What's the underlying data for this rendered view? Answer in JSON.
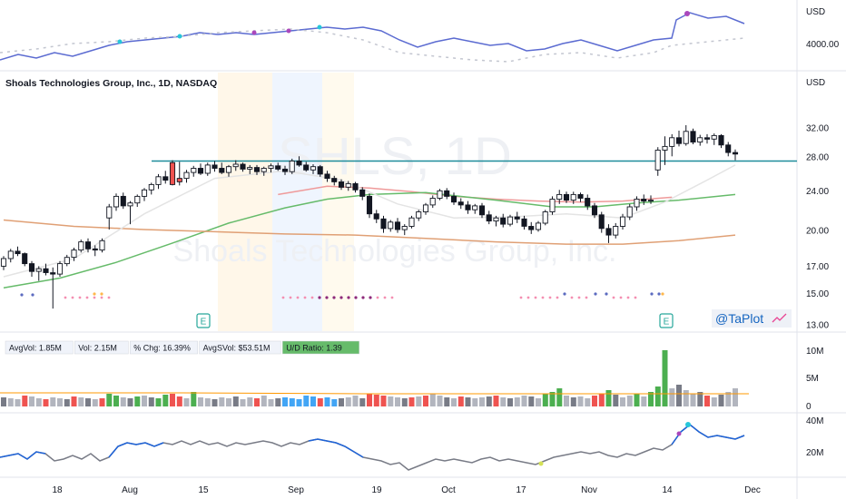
{
  "chart_data": {
    "type": "candlestick",
    "title": "Shoals Technologies Group, Inc., 1D, NASDAQ",
    "watermark": {
      "ticker": "SHLS, 1D",
      "name": "Shoals Technologies Group, Inc."
    },
    "price_axis": {
      "unit": "USD",
      "scale": "log",
      "ticks": [
        "32.00",
        "28.00",
        "24.00",
        "20.00",
        "17.00",
        "15.00",
        "13.00"
      ],
      "tick_values": [
        32,
        28,
        24,
        20,
        17,
        15,
        13
      ]
    },
    "x_axis": {
      "labels": [
        "18",
        "Aug",
        "15",
        "Sep",
        "19",
        "Oct",
        "17",
        "Nov",
        "14",
        "Dec"
      ]
    },
    "earnings_markers": [
      "E",
      "E"
    ],
    "horizontal_line": 27.5,
    "candles": [
      [
        17.0,
        17.8,
        16.7,
        17.6
      ],
      [
        17.6,
        18.4,
        17.3,
        18.2
      ],
      [
        18.2,
        18.6,
        17.8,
        18.0
      ],
      [
        18.0,
        18.1,
        17.0,
        17.2
      ],
      [
        17.2,
        17.4,
        16.2,
        16.6
      ],
      [
        16.6,
        17.0,
        15.9,
        16.8
      ],
      [
        16.8,
        17.2,
        16.3,
        16.5
      ],
      [
        16.5,
        16.9,
        14.0,
        16.4
      ],
      [
        16.4,
        17.4,
        16.2,
        17.2
      ],
      [
        17.2,
        17.9,
        17.0,
        17.7
      ],
      [
        17.7,
        18.5,
        17.4,
        18.3
      ],
      [
        18.3,
        19.2,
        18.1,
        19.0
      ],
      [
        19.0,
        19.3,
        18.1,
        18.4
      ],
      [
        18.4,
        18.7,
        17.8,
        18.3
      ],
      [
        18.3,
        19.3,
        18.1,
        19.1
      ],
      [
        21.2,
        22.6,
        20.1,
        22.3
      ],
      [
        22.3,
        23.7,
        21.9,
        23.4
      ],
      [
        23.4,
        23.8,
        22.1,
        22.4
      ],
      [
        22.4,
        22.9,
        20.6,
        22.7
      ],
      [
        22.7,
        23.6,
        22.3,
        23.4
      ],
      [
        23.4,
        24.3,
        22.9,
        24.1
      ],
      [
        24.1,
        24.9,
        23.6,
        24.7
      ],
      [
        24.7,
        25.9,
        24.2,
        25.6
      ],
      [
        25.6,
        26.3,
        24.8,
        25.2
      ],
      [
        24.7,
        27.6,
        24.6,
        27.3
      ],
      [
        25.0,
        27.4,
        24.6,
        25.4
      ],
      [
        25.4,
        26.4,
        24.9,
        26.1
      ],
      [
        26.1,
        26.9,
        25.6,
        26.6
      ],
      [
        26.6,
        27.2,
        25.8,
        26.0
      ],
      [
        26.0,
        27.3,
        25.7,
        27.0
      ],
      [
        27.0,
        27.5,
        26.2,
        26.6
      ],
      [
        26.6,
        27.3,
        25.9,
        26.1
      ],
      [
        26.1,
        27.0,
        25.6,
        26.8
      ],
      [
        26.8,
        27.6,
        26.3,
        27.1
      ],
      [
        27.1,
        27.3,
        26.2,
        26.5
      ],
      [
        26.5,
        27.0,
        25.9,
        26.7
      ],
      [
        26.7,
        27.0,
        25.8,
        26.2
      ],
      [
        26.2,
        26.8,
        25.7,
        26.6
      ],
      [
        26.6,
        27.2,
        26.1,
        26.9
      ],
      [
        26.9,
        27.3,
        26.3,
        26.5
      ],
      [
        26.5,
        26.9,
        25.8,
        26.2
      ],
      [
        26.2,
        27.8,
        25.9,
        27.5
      ],
      [
        27.5,
        28.1,
        26.8,
        27.0
      ],
      [
        27.0,
        27.4,
        26.2,
        26.4
      ],
      [
        26.4,
        27.1,
        25.9,
        26.8
      ],
      [
        26.8,
        27.0,
        25.6,
        25.9
      ],
      [
        25.9,
        26.3,
        25.0,
        25.4
      ],
      [
        25.4,
        25.7,
        24.6,
        25.0
      ],
      [
        25.0,
        25.3,
        24.1,
        24.4
      ],
      [
        24.4,
        25.1,
        24.0,
        24.8
      ],
      [
        24.8,
        25.0,
        23.8,
        24.1
      ],
      [
        24.1,
        24.4,
        23.0,
        23.4
      ],
      [
        23.4,
        23.7,
        21.2,
        21.6
      ],
      [
        21.6,
        22.0,
        20.7,
        21.1
      ],
      [
        21.1,
        21.4,
        19.8,
        20.2
      ],
      [
        20.2,
        21.0,
        19.9,
        20.8
      ],
      [
        20.8,
        21.2,
        19.8,
        20.1
      ],
      [
        20.1,
        20.6,
        19.6,
        20.4
      ],
      [
        20.4,
        21.4,
        20.2,
        21.2
      ],
      [
        21.2,
        22.0,
        20.9,
        21.8
      ],
      [
        21.8,
        22.7,
        21.5,
        22.5
      ],
      [
        22.5,
        23.5,
        22.2,
        23.2
      ],
      [
        23.2,
        24.2,
        23.0,
        24.0
      ],
      [
        24.0,
        24.3,
        23.1,
        23.4
      ],
      [
        23.4,
        23.8,
        22.5,
        22.8
      ],
      [
        22.8,
        23.2,
        22.1,
        22.5
      ],
      [
        22.5,
        22.9,
        21.6,
        22.0
      ],
      [
        22.0,
        22.6,
        21.6,
        22.4
      ],
      [
        22.4,
        22.7,
        21.2,
        21.5
      ],
      [
        21.5,
        21.9,
        20.6,
        20.9
      ],
      [
        20.9,
        21.4,
        20.4,
        21.2
      ],
      [
        21.2,
        21.6,
        20.3,
        20.6
      ],
      [
        20.6,
        21.5,
        20.4,
        21.3
      ],
      [
        21.3,
        21.8,
        20.7,
        21.1
      ],
      [
        21.1,
        21.4,
        20.1,
        20.4
      ],
      [
        20.4,
        20.8,
        19.7,
        20.1
      ],
      [
        20.1,
        20.9,
        19.9,
        20.7
      ],
      [
        20.7,
        22.0,
        20.5,
        21.8
      ],
      [
        21.8,
        23.4,
        21.5,
        23.1
      ],
      [
        23.1,
        24.1,
        22.6,
        23.6
      ],
      [
        23.6,
        23.9,
        22.7,
        23.0
      ],
      [
        23.0,
        23.9,
        22.6,
        23.6
      ],
      [
        23.6,
        23.8,
        22.8,
        23.2
      ],
      [
        23.2,
        23.6,
        22.0,
        22.4
      ],
      [
        22.4,
        22.7,
        21.2,
        21.5
      ],
      [
        21.5,
        21.8,
        19.8,
        20.2
      ],
      [
        20.2,
        20.6,
        18.9,
        19.6
      ],
      [
        19.6,
        20.7,
        19.3,
        20.4
      ],
      [
        20.4,
        21.6,
        20.1,
        21.3
      ],
      [
        21.3,
        22.6,
        21.0,
        22.3
      ],
      [
        22.3,
        23.4,
        21.9,
        23.1
      ],
      [
        23.1,
        23.6,
        22.5,
        22.9
      ],
      [
        22.9,
        23.5,
        22.6,
        23.0
      ],
      [
        26.4,
        29.3,
        25.7,
        28.9
      ],
      [
        28.9,
        30.8,
        27.0,
        29.4
      ],
      [
        29.4,
        31.1,
        28.1,
        30.6
      ],
      [
        30.6,
        31.6,
        29.4,
        29.8
      ],
      [
        29.8,
        32.4,
        29.5,
        31.5
      ],
      [
        31.5,
        31.9,
        29.7,
        30.0
      ],
      [
        30.0,
        31.0,
        29.5,
        30.6
      ],
      [
        30.6,
        31.1,
        29.8,
        30.4
      ],
      [
        30.4,
        31.2,
        29.6,
        30.9
      ],
      [
        30.9,
        31.1,
        29.2,
        29.6
      ],
      [
        29.6,
        30.0,
        28.1,
        28.6
      ],
      [
        28.6,
        29.0,
        27.6,
        28.4
      ]
    ],
    "overlay_series": [
      {
        "color": "#ef9a9a",
        "points": [
          [
            39,
            23.6
          ],
          [
            46,
            24.5
          ],
          [
            52,
            24.3
          ],
          [
            58,
            23.9
          ],
          [
            64,
            23.4
          ],
          [
            70,
            23.1
          ],
          [
            76,
            22.9
          ],
          [
            82,
            22.8
          ],
          [
            88,
            22.9
          ],
          [
            95,
            23.3
          ]
        ]
      },
      {
        "color": "#66bb6a",
        "points": [
          [
            0,
            15.4
          ],
          [
            8,
            16.1
          ],
          [
            16,
            17.3
          ],
          [
            24,
            18.9
          ],
          [
            32,
            20.7
          ],
          [
            40,
            22.2
          ],
          [
            46,
            23.1
          ],
          [
            52,
            23.6
          ],
          [
            60,
            23.8
          ],
          [
            70,
            23.0
          ],
          [
            78,
            22.3
          ],
          [
            84,
            22.3
          ],
          [
            90,
            22.7
          ],
          [
            96,
            23.0
          ],
          [
            104,
            23.6
          ]
        ]
      },
      {
        "color": "#e0a075",
        "points": [
          [
            0,
            21.0
          ],
          [
            10,
            20.4
          ],
          [
            20,
            20.1
          ],
          [
            30,
            19.9
          ],
          [
            40,
            19.7
          ],
          [
            50,
            19.6
          ],
          [
            60,
            19.3
          ],
          [
            70,
            19.0
          ],
          [
            80,
            18.8
          ],
          [
            88,
            18.8
          ],
          [
            96,
            19.1
          ],
          [
            104,
            19.6
          ]
        ]
      },
      {
        "color": "#e4e4e4",
        "points": [
          [
            0,
            16.2
          ],
          [
            10,
            17.6
          ],
          [
            20,
            21.6
          ],
          [
            30,
            25.4
          ],
          [
            40,
            26.3
          ],
          [
            48,
            25.2
          ],
          [
            56,
            22.6
          ],
          [
            64,
            21.2
          ],
          [
            72,
            21.3
          ],
          [
            80,
            21.6
          ],
          [
            88,
            21.2
          ],
          [
            94,
            22.8
          ],
          [
            100,
            25.2
          ],
          [
            104,
            27.0
          ]
        ]
      }
    ],
    "top_panel": {
      "unit": "USD",
      "tick": "4000.00"
    },
    "volume_panel": {
      "ticks": [
        "10M",
        "5M",
        "0"
      ],
      "stats": [
        "AvgVol: 1.85M",
        "Vol: 2.15M",
        "% Chg: 16.39%",
        "AvgSVol: $53.51M",
        "U/D Ratio: 1.39"
      ]
    },
    "bottom_panel": {
      "ticks": [
        "40M",
        "20M"
      ]
    },
    "watermark_label": "@TaPlot"
  }
}
